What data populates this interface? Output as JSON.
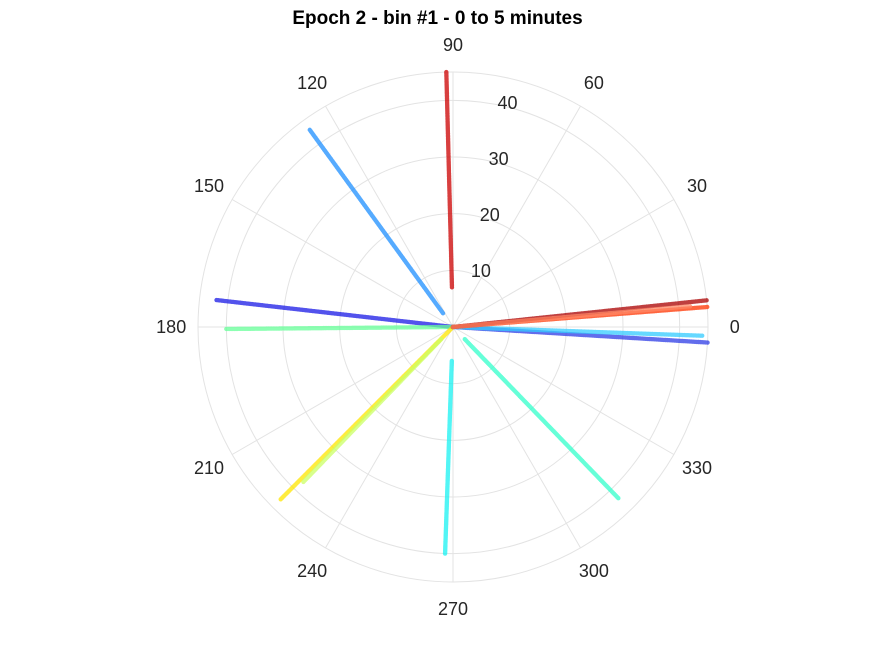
{
  "chart_data": {
    "type": "scatter",
    "coordinate_system": "polar",
    "title": "Epoch 2 - bin #1 - 0 to 5 minutes",
    "theta_unit": "degrees",
    "theta_ticks": [
      "0",
      "30",
      "60",
      "90",
      "120",
      "150",
      "180",
      "210",
      "240",
      "270",
      "300",
      "330"
    ],
    "r_ticks": [
      "10",
      "20",
      "30",
      "40"
    ],
    "r_lim": [
      0,
      45
    ],
    "grid": true,
    "colormap": "jet",
    "series": [
      {
        "theta": 91.5,
        "r_start": 7,
        "r_end": 45,
        "color": "#cc0000"
      },
      {
        "theta": 126,
        "r_start": 3,
        "r_end": 43,
        "color": "#1e8fff"
      },
      {
        "theta": 173.5,
        "r_start": 0,
        "r_end": 42,
        "color": "#1a1ae6"
      },
      {
        "theta": 180.5,
        "r_start": 0,
        "r_end": 40,
        "color": "#66ff99"
      },
      {
        "theta": 225,
        "r_start": 0,
        "r_end": 43,
        "color": "#ffe600"
      },
      {
        "theta": 226,
        "r_start": 3,
        "r_end": 38,
        "color": "#ccff66"
      },
      {
        "theta": 268,
        "r_start": 6,
        "r_end": 40,
        "color": "#19f2f2"
      },
      {
        "theta": 314,
        "r_start": 3,
        "r_end": 42,
        "color": "#33ffcc"
      },
      {
        "theta": 356.5,
        "r_start": 0,
        "r_end": 45,
        "color": "#2e3de6"
      },
      {
        "theta": 358,
        "r_start": 0,
        "r_end": 44,
        "color": "#33ccff"
      },
      {
        "theta": 4.5,
        "r_start": 0,
        "r_end": 45,
        "color": "#ff3300"
      },
      {
        "theta": 6,
        "r_start": 0,
        "r_end": 45,
        "color": "#aa0000"
      },
      {
        "theta": 5,
        "r_start": 0,
        "r_end": 42,
        "color": "#ff8866"
      }
    ]
  }
}
